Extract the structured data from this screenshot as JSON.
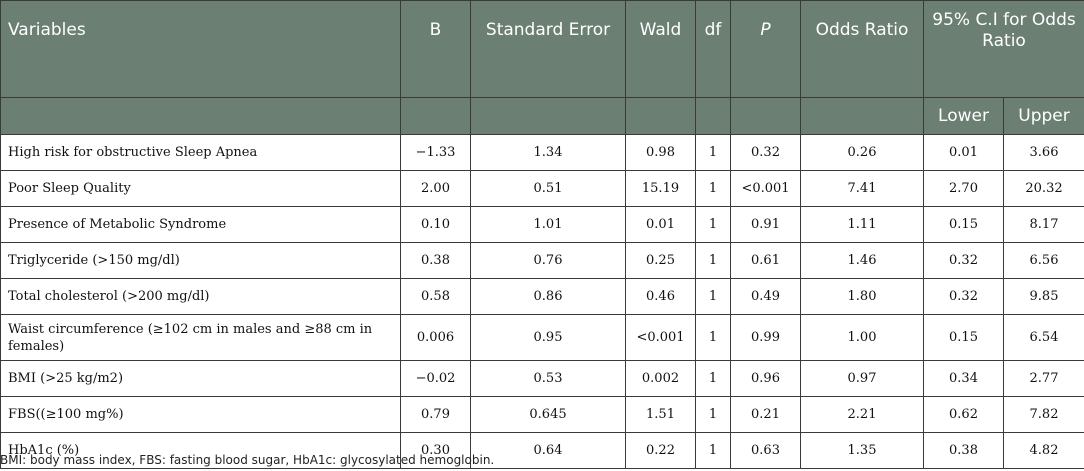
{
  "headers": {
    "variables": "Variables",
    "b": "B",
    "standard_error": "Standard Error",
    "wald": "Wald",
    "df": "df",
    "p": "P",
    "odds_ratio": "Odds Ratio",
    "ci": "95% C.I for Odds Ratio",
    "lower": "Lower",
    "upper": "Upper"
  },
  "rows": [
    {
      "variable": "High risk for obstructive Sleep Apnea",
      "b": "−1.33",
      "se": "1.34",
      "wald": "0.98",
      "df": "1",
      "p": "0.32",
      "or": "0.26",
      "lower": "0.01",
      "upper": "3.66"
    },
    {
      "variable": "Poor Sleep Quality",
      "b": "2.00",
      "se": "0.51",
      "wald": "15.19",
      "df": "1",
      "p": "<0.001",
      "or": "7.41",
      "lower": "2.70",
      "upper": "20.32"
    },
    {
      "variable": "Presence of Metabolic Syndrome",
      "b": "0.10",
      "se": "1.01",
      "wald": "0.01",
      "df": "1",
      "p": "0.91",
      "or": "1.11",
      "lower": "0.15",
      "upper": "8.17"
    },
    {
      "variable": "Triglyceride (>150 mg/dl)",
      "b": "0.38",
      "se": "0.76",
      "wald": "0.25",
      "df": "1",
      "p": "0.61",
      "or": "1.46",
      "lower": "0.32",
      "upper": "6.56"
    },
    {
      "variable": "Total cholesterol (>200 mg/dl)",
      "b": "0.58",
      "se": "0.86",
      "wald": "0.46",
      "df": "1",
      "p": "0.49",
      "or": "1.80",
      "lower": "0.32",
      "upper": "9.85"
    },
    {
      "variable": "Waist circumference (≥102 cm in males and ≥88 cm in females)",
      "b": "0.006",
      "se": "0.95",
      "wald": "<0.001",
      "df": "1",
      "p": "0.99",
      "or": "1.00",
      "lower": "0.15",
      "upper": "6.54"
    },
    {
      "variable": "BMI (>25 kg/m2)",
      "b": "−0.02",
      "se": "0.53",
      "wald": "0.002",
      "df": "1",
      "p": "0.96",
      "or": "0.97",
      "lower": "0.34",
      "upper": "2.77"
    },
    {
      "variable": "FBS((≥100 mg%)",
      "b": "0.79",
      "se": "0.645",
      "wald": "1.51",
      "df": "1",
      "p": "0.21",
      "or": "2.21",
      "lower": "0.62",
      "upper": "7.82"
    },
    {
      "variable": "HbA1c (%)",
      "b": "0.30",
      "se": "0.64",
      "wald": "0.22",
      "df": "1",
      "p": "0.63",
      "or": "1.35",
      "lower": "0.38",
      "upper": "4.82"
    }
  ],
  "footnote": "BMI: body mass index, FBS: fasting blood sugar, HbA1c: glycosylated hemoglobin."
}
